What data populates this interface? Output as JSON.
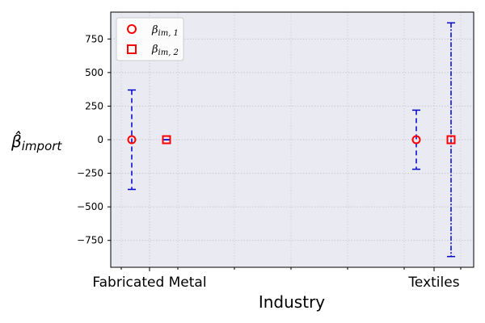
{
  "chart_data": {
    "type": "scatter",
    "title": "",
    "xlabel": "Industry",
    "ylabel_main": "β̂",
    "ylabel_sub": "import",
    "categories": [
      "Fabricated Metal",
      "Textiles"
    ],
    "ylim": [
      -950,
      950
    ],
    "yticks": [
      -750,
      -500,
      -250,
      0,
      250,
      500,
      750
    ],
    "ytick_labels": [
      "−750",
      "−500",
      "−250",
      "0",
      "250",
      "500",
      "750"
    ],
    "grid": true,
    "legend_placement": "top-left",
    "series": [
      {
        "name_main": "β",
        "name_sub": "im, 1",
        "marker": "circle",
        "color": "#ff0000",
        "error_color": "#0000cc",
        "values": [
          0,
          0
        ],
        "err_low": [
          -370,
          -220
        ],
        "err_high": [
          370,
          220
        ]
      },
      {
        "name_main": "β",
        "name_sub": "im, 2",
        "marker": "square",
        "color": "#ff0000",
        "error_color": "#0000cc",
        "values": [
          0,
          0
        ],
        "err_low": [
          0,
          -870
        ],
        "err_high": [
          0,
          870
        ]
      }
    ]
  }
}
